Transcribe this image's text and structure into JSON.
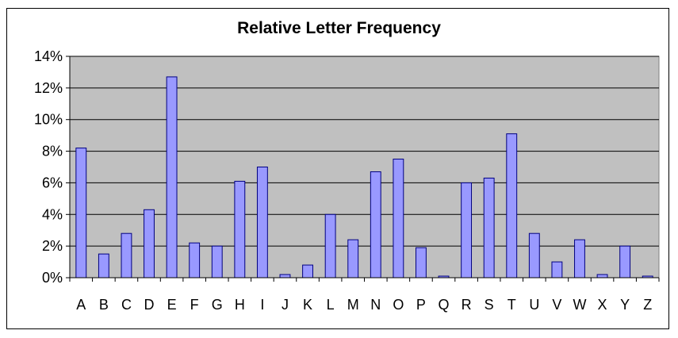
{
  "chart_data": {
    "type": "bar",
    "title": "Relative Letter Frequency",
    "xlabel": "",
    "ylabel": "",
    "categories": [
      "A",
      "B",
      "C",
      "D",
      "E",
      "F",
      "G",
      "H",
      "I",
      "J",
      "K",
      "L",
      "M",
      "N",
      "O",
      "P",
      "Q",
      "R",
      "S",
      "T",
      "U",
      "V",
      "W",
      "X",
      "Y",
      "Z"
    ],
    "values": [
      8.2,
      1.5,
      2.8,
      4.3,
      12.7,
      2.2,
      2.0,
      6.1,
      7.0,
      0.2,
      0.8,
      4.0,
      2.4,
      6.7,
      7.5,
      1.9,
      0.1,
      6.0,
      6.3,
      9.1,
      2.8,
      1.0,
      2.4,
      0.2,
      2.0,
      0.1
    ],
    "ylim": [
      0,
      14
    ],
    "yticks": [
      "0%",
      "2%",
      "4%",
      "6%",
      "8%",
      "10%",
      "12%",
      "14%"
    ],
    "grid": true,
    "legend": "none",
    "colors": {
      "bar_fill": "#9999ff",
      "bar_stroke": "#000080",
      "plot_background": "#c0c0c0",
      "gridline": "#000000"
    }
  }
}
